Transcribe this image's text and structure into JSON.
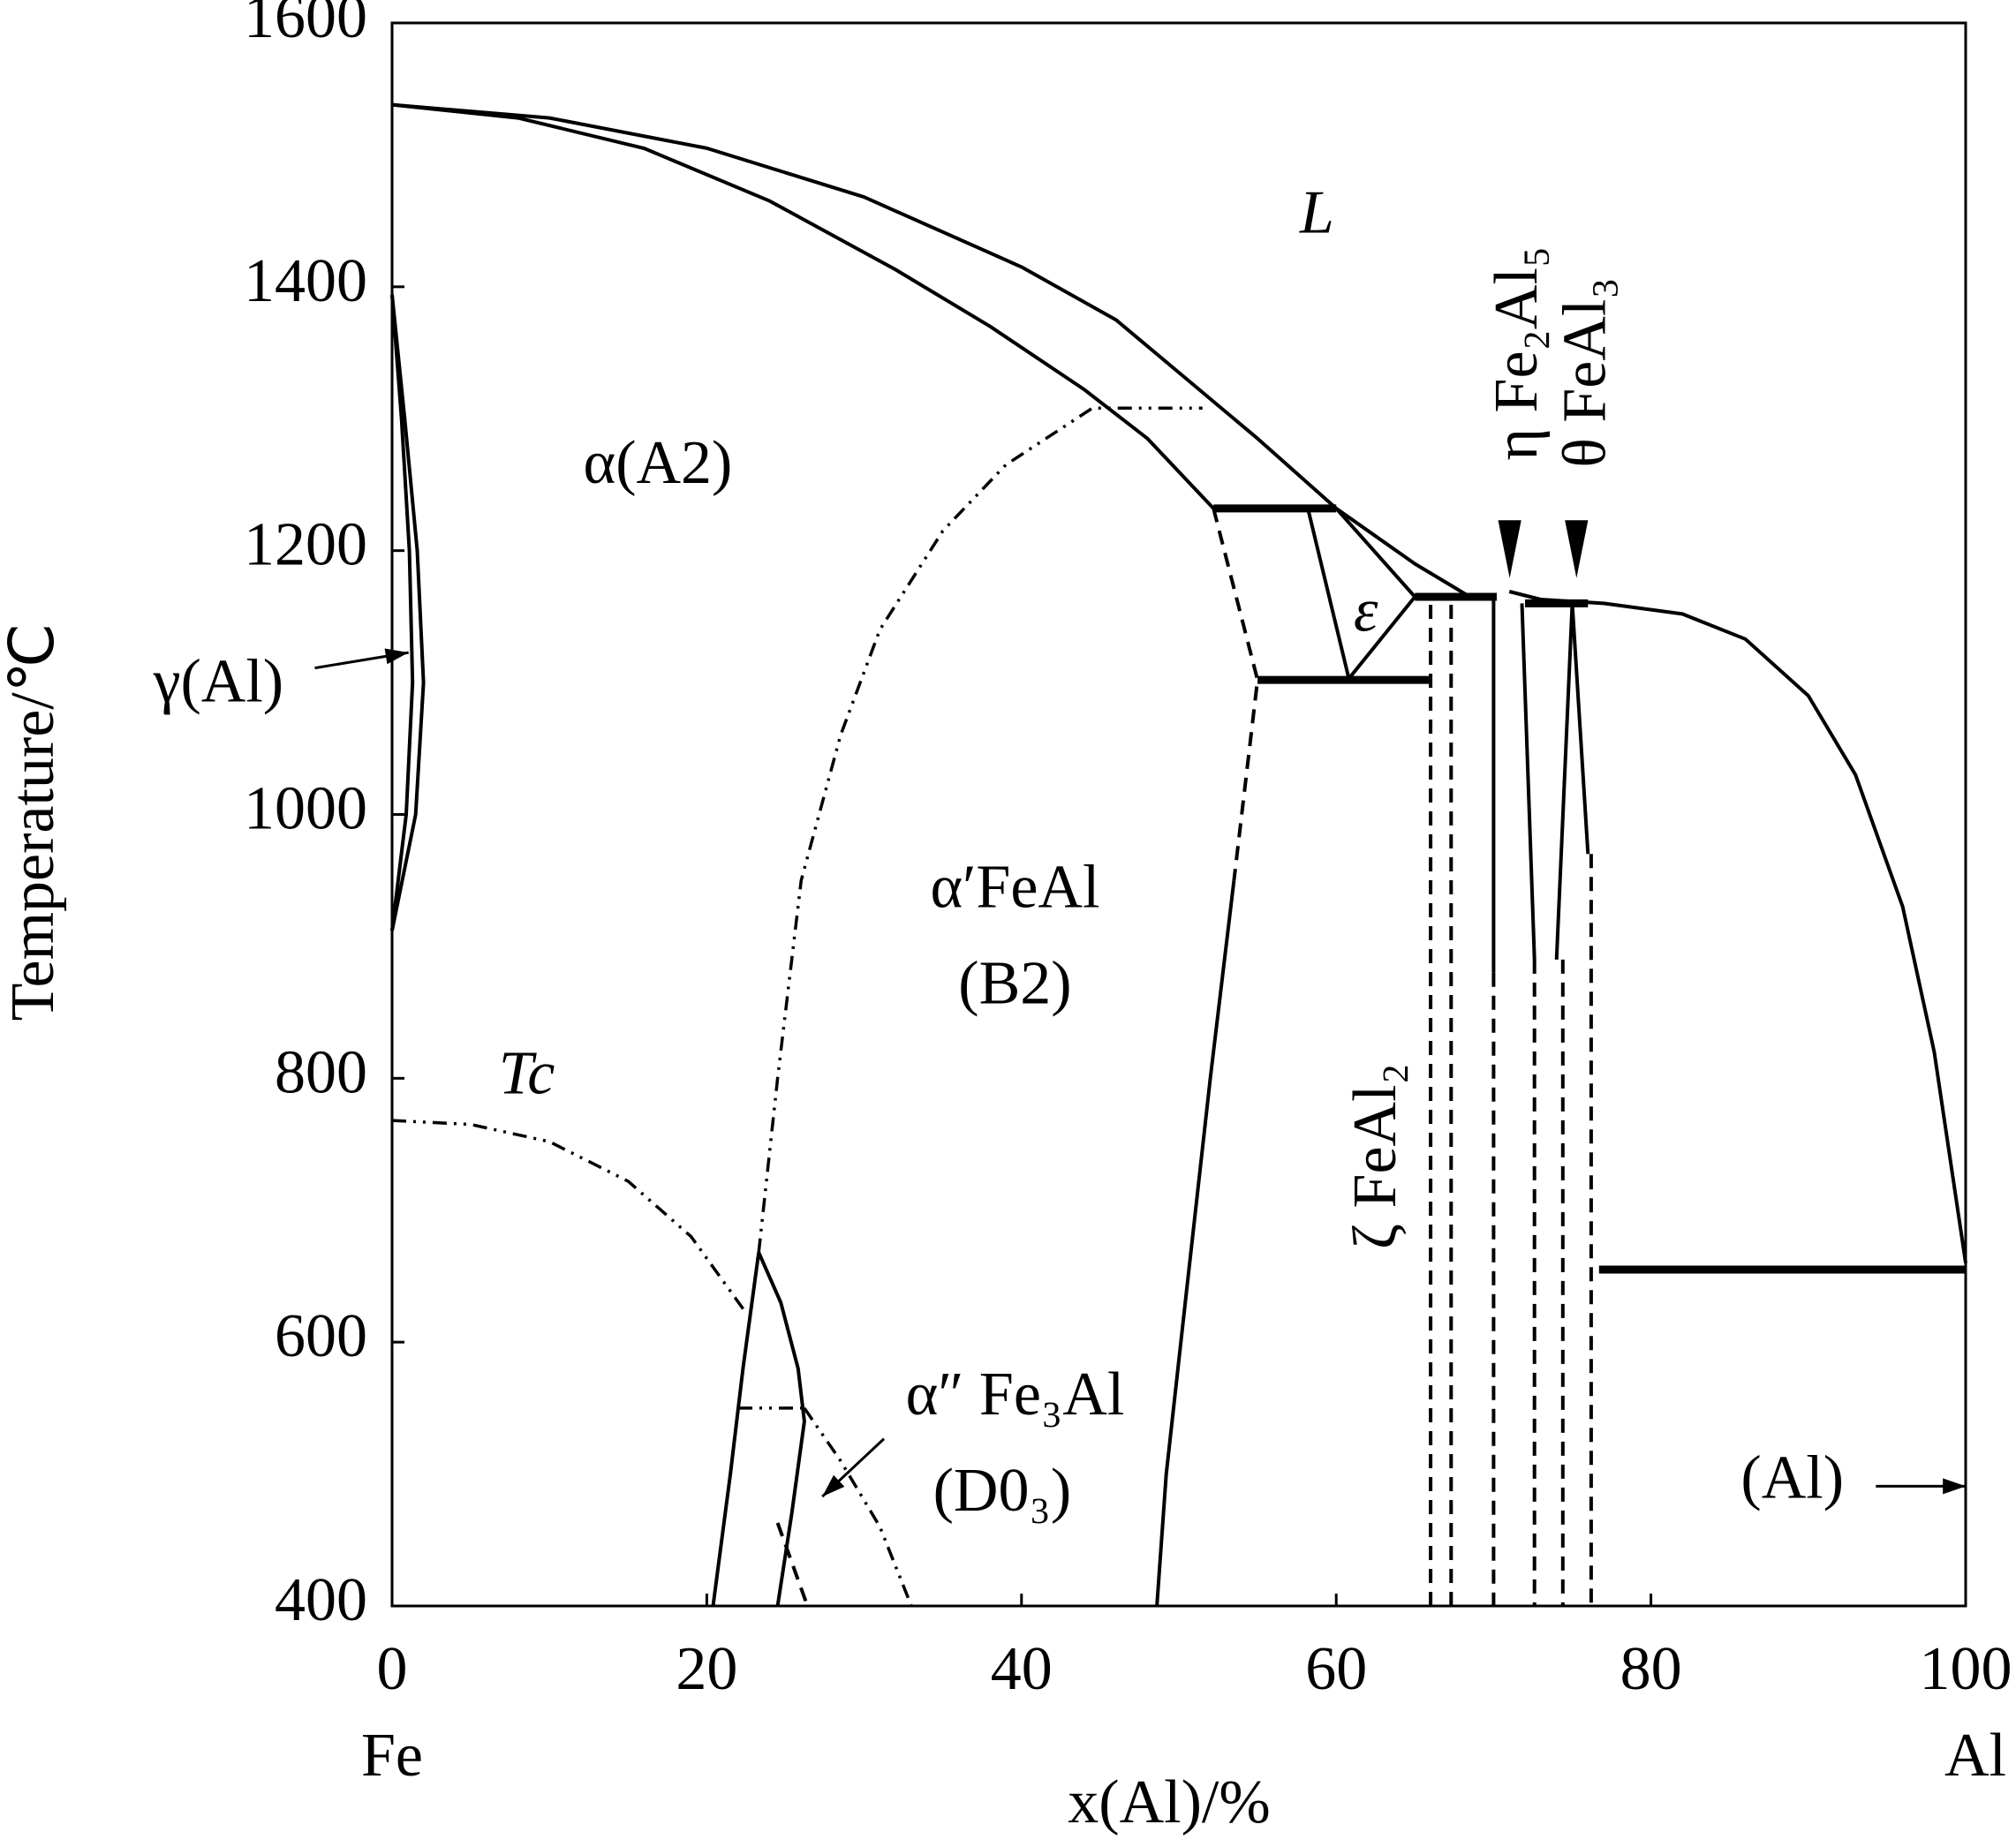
{
  "chart_data": {
    "type": "phase",
    "color": "#000000",
    "xlim": [
      0,
      100
    ],
    "xticks": [
      0,
      20,
      40,
      60,
      80,
      100
    ],
    "ylim": [
      400,
      1600
    ],
    "yticks": [
      400,
      600,
      800,
      1000,
      1200,
      1400,
      1600
    ],
    "x_label": "x(Al)/%",
    "y_label": "Temperature/℃",
    "x_start_label": "Fe",
    "x_end_label": "Al",
    "annotations": [
      "L",
      "α(A2)",
      "γ(Al)",
      "α′FeAl",
      "(B2)",
      "Tc",
      "α″ Fe₃Al",
      "(D0₃)",
      "ε",
      "ζ FeAl₂",
      "η Fe₂Al₅",
      "θ FeAl₃",
      "(Al)"
    ],
    "series": [
      {
        "style": "solid",
        "x": [
          0,
          10,
          20,
          30,
          40,
          46,
          51,
          55,
          60,
          65,
          68.5
        ],
        "values": [
          1538,
          1528,
          1505,
          1468,
          1415,
          1375,
          1325,
          1285,
          1232,
          1190,
          1165
        ]
      },
      {
        "style": "solid",
        "x": [
          71,
          73,
          77,
          82,
          86,
          90,
          93,
          96,
          98,
          99.5,
          100
        ],
        "values": [
          1169,
          1163,
          1160,
          1152,
          1133,
          1090,
          1030,
          930,
          820,
          700,
          660
        ]
      },
      {
        "style": "solid",
        "x": [
          0,
          8,
          16,
          24,
          32,
          38,
          44,
          48,
          52.2
        ],
        "values": [
          1538,
          1528,
          1505,
          1465,
          1413,
          1370,
          1322,
          1285,
          1232
        ]
      },
      {
        "style": "thick",
        "x": [
          52.2,
          60
        ],
        "values": [
          1232,
          1232
        ]
      },
      {
        "style": "solid",
        "x": [
          58.2,
          60.8,
          65
        ],
        "values": [
          1232,
          1103,
          1165
        ]
      },
      {
        "style": "solid",
        "x": [
          60,
          65
        ],
        "values": [
          1232,
          1165
        ]
      },
      {
        "style": "thick",
        "x": [
          55,
          65.9
        ],
        "values": [
          1102,
          1102
        ]
      },
      {
        "style": "thick",
        "x": [
          65,
          70.2
        ],
        "values": [
          1165,
          1165
        ]
      },
      {
        "style": "thick",
        "x": [
          72,
          76
        ],
        "values": [
          1160,
          1160
        ]
      },
      {
        "style": "dashed",
        "x": [
          52.2,
          55,
          53.5
        ],
        "values": [
          1232,
          1102,
          950
        ]
      },
      {
        "style": "solid",
        "x": [
          53.5,
          52,
          50.5,
          49.2,
          48.6
        ],
        "values": [
          950,
          800,
          640,
          500,
          400
        ]
      },
      {
        "style": "dashdot",
        "x": [
          23.3,
          24.5,
          26,
          28.5,
          31,
          35,
          39,
          44.5,
          51.5
        ],
        "values": [
          668,
          800,
          950,
          1060,
          1140,
          1215,
          1265,
          1308,
          1308
        ]
      },
      {
        "style": "dashdot",
        "x": [
          0,
          5,
          10,
          15,
          19,
          22.5
        ],
        "values": [
          768,
          765,
          752,
          722,
          680,
          622
        ]
      },
      {
        "style": "dashdot",
        "x": [
          26.2,
          28.5,
          31,
          33
        ],
        "values": [
          550,
          510,
          460,
          400
        ]
      },
      {
        "style": "dashdot",
        "x": [
          22,
          26.1
        ],
        "values": [
          550,
          550
        ]
      },
      {
        "style": "solid",
        "x": [
          20.4,
          21.5,
          22.3,
          23.3
        ],
        "values": [
          400,
          500,
          580,
          668
        ]
      },
      {
        "style": "solid",
        "x": [
          23.3,
          24.7,
          25.8,
          26.2,
          25.4,
          24.5
        ],
        "values": [
          668,
          630,
          580,
          540,
          470,
          400
        ]
      },
      {
        "style": "dashed",
        "x": [
          24.5,
          26.4
        ],
        "values": [
          463,
          400
        ]
      },
      {
        "style": "solid",
        "x": [
          0,
          0.8,
          1.6,
          2,
          1.5,
          0
        ],
        "values": [
          1394,
          1300,
          1200,
          1100,
          1000,
          912
        ]
      },
      {
        "style": "solid",
        "x": [
          0,
          0.6,
          1.1,
          1.3,
          0.9,
          0
        ],
        "values": [
          1394,
          1300,
          1200,
          1100,
          1000,
          912
        ]
      },
      {
        "style": "dashed",
        "x": [
          66,
          66
        ],
        "values": [
          400,
          1160
        ]
      },
      {
        "style": "dashed",
        "x": [
          67.3,
          67.3
        ],
        "values": [
          400,
          1160
        ]
      },
      {
        "style": "solid",
        "x": [
          70,
          70
        ],
        "values": [
          1165,
          880
        ]
      },
      {
        "style": "dashed",
        "x": [
          70,
          70
        ],
        "values": [
          880,
          400
        ]
      },
      {
        "style": "solid",
        "x": [
          71.8,
          72.6
        ],
        "values": [
          1160,
          890
        ]
      },
      {
        "style": "dashed",
        "x": [
          72.6,
          72.6
        ],
        "values": [
          890,
          400
        ]
      },
      {
        "style": "solid",
        "x": [
          74,
          75,
          76
        ],
        "values": [
          890,
          1160,
          970
        ]
      },
      {
        "style": "dashed",
        "x": [
          74.4,
          74.4
        ],
        "values": [
          890,
          400
        ]
      },
      {
        "style": "dashed",
        "x": [
          76.2,
          76.2
        ],
        "values": [
          970,
          400
        ]
      },
      {
        "style": "thick",
        "x": [
          76.7,
          100
        ],
        "values": [
          655,
          655
        ]
      }
    ]
  }
}
